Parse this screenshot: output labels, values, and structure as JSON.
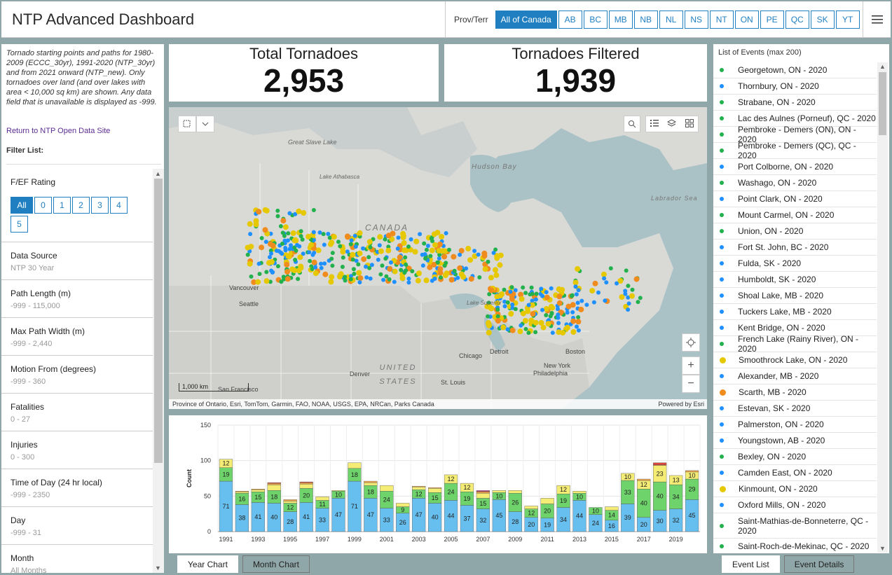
{
  "app_title": "NTP Advanced Dashboard",
  "prov_terr": {
    "label": "Prov/Terr",
    "buttons": [
      "All of Canada",
      "AB",
      "BC",
      "MB",
      "NB",
      "NL",
      "NS",
      "NT",
      "ON",
      "PE",
      "QC",
      "SK",
      "YT"
    ],
    "active": "All of Canada"
  },
  "menu_icon": "hamburger-menu-icon",
  "left_panel": {
    "description": "Tornado starting points and paths for 1980-2009 (ECCC_30yr), 1991-2020 (NTP_30yr) and from 2021 onward (NTP_new).  Only tornadoes over land (and over lakes with area < 10,000 sq km) are shown. Any data field that is unavailable is displayed as -999.",
    "link": "Return to NTP Open Data Site",
    "filter_list_label": "Filter List:",
    "rating": {
      "title": "F/EF Rating",
      "buttons": [
        "All",
        "0",
        "1",
        "2",
        "3",
        "4",
        "5"
      ],
      "active": "All"
    },
    "filters": [
      {
        "title": "Data Source",
        "value": "NTP 30 Year"
      },
      {
        "title": "Path Length (m)",
        "value": "-999 - 115,000"
      },
      {
        "title": "Max Path Width (m)",
        "value": "-999 - 2,440"
      },
      {
        "title": "Motion From (degrees)",
        "value": "-999 - 360"
      },
      {
        "title": "Fatalities",
        "value": "0 - 27"
      },
      {
        "title": "Injuries",
        "value": "0 - 300"
      },
      {
        "title": "Time of Day (24 hr local)",
        "value": "-999 - 2350"
      },
      {
        "title": "Day",
        "value": "-999 - 31"
      },
      {
        "title": "Month",
        "value": "All Months"
      }
    ]
  },
  "kpis": {
    "total_label": "Total Tornadoes",
    "total_value": "2,953",
    "filtered_label": "Tornadoes Filtered",
    "filtered_value": "1,939"
  },
  "map": {
    "labels": [
      "Great Slave Lake",
      "Lake Athabasca",
      "Hudson Bay",
      "Labrador Sea",
      "CANADA",
      "Vancouver",
      "Seattle",
      "Lake Superior",
      "Detroit",
      "Chicago",
      "Boston",
      "New York",
      "Philadelphia",
      "Denver",
      "St. Louis",
      "UNITED STATES",
      "San Francisco"
    ],
    "scale": "1,000 km",
    "attribution": "Province of Ontario, Esri, TomTom, Garmin, FAO, NOAA, USGS, EPA, NRCan, Parks Canada",
    "powered_by": "Powered by Esri",
    "tools": {
      "select": "select-rectangle-icon",
      "dropdown": "chevron-down-icon",
      "search": "search-icon",
      "legend": "legend-list-icon",
      "layers": "layers-icon",
      "basemap": "basemap-gallery-icon",
      "locate": "locate-icon",
      "zoom_in": "+",
      "zoom_out": "−"
    }
  },
  "chart_data": {
    "type": "bar",
    "stacked": true,
    "ylabel": "Count",
    "ylim": [
      0,
      150
    ],
    "yticks": [
      0,
      50,
      100,
      150
    ],
    "categories": [
      "1991",
      "1992",
      "1993",
      "1994",
      "1995",
      "1996",
      "1997",
      "1998",
      "1999",
      "2000",
      "2001",
      "2002",
      "2003",
      "2004",
      "2005",
      "2006",
      "2007",
      "2008",
      "2009",
      "2010",
      "2011",
      "2012",
      "2013",
      "2014",
      "2015",
      "2016",
      "2017",
      "2018",
      "2019",
      "2020"
    ],
    "xtick_labels": [
      "1991",
      "1993",
      "1995",
      "1997",
      "1999",
      "2001",
      "2003",
      "2005",
      "2007",
      "2009",
      "2011",
      "2013",
      "2015",
      "2017",
      "2019"
    ],
    "series": [
      {
        "color": "#66bfef",
        "values": [
          71,
          38,
          41,
          40,
          28,
          41,
          33,
          47,
          71,
          47,
          33,
          26,
          47,
          40,
          44,
          37,
          32,
          45,
          28,
          20,
          19,
          34,
          44,
          24,
          16,
          39,
          20,
          30,
          32,
          45
        ]
      },
      {
        "color": "#6ed36a",
        "values": [
          19,
          16,
          15,
          18,
          12,
          20,
          11,
          10,
          18,
          18,
          24,
          9,
          12,
          15,
          24,
          19,
          15,
          10,
          26,
          12,
          20,
          19,
          10,
          10,
          14,
          33,
          40,
          40,
          34,
          29
        ]
      },
      {
        "color": "#f4ec74",
        "values": [
          12,
          2,
          3,
          8,
          3,
          6,
          5,
          1,
          8,
          4,
          8,
          5,
          4,
          6,
          12,
          12,
          7,
          3,
          4,
          4,
          8,
          12,
          3,
          0,
          5,
          10,
          12,
          23,
          13,
          10
        ]
      },
      {
        "color": "#f3a64a",
        "values": [
          0,
          1,
          1,
          2,
          2,
          2,
          0,
          0,
          0,
          2,
          0,
          0,
          1,
          1,
          0,
          0,
          2,
          0,
          0,
          0,
          0,
          0,
          0,
          0,
          0,
          0,
          2,
          1,
          0,
          2
        ]
      },
      {
        "color": "#e0453c",
        "values": [
          0,
          0,
          0,
          1,
          0,
          1,
          0,
          0,
          0,
          0,
          0,
          0,
          0,
          0,
          0,
          0,
          1,
          0,
          0,
          0,
          0,
          0,
          0,
          0,
          0,
          0,
          0,
          3,
          0,
          0
        ]
      },
      {
        "color": "#d85fcb",
        "values": [
          0,
          0,
          0,
          0,
          0,
          0,
          0,
          0,
          0,
          0,
          0,
          0,
          0,
          0,
          0,
          0,
          1,
          0,
          0,
          0,
          0,
          0,
          0,
          0,
          0,
          0,
          0,
          0,
          0,
          0
        ]
      }
    ],
    "data_labels_series": [
      0,
      1,
      2
    ]
  },
  "chart_tabs": [
    "Year Chart",
    "Month Chart"
  ],
  "chart_tab_active": "Year Chart",
  "right_panel": {
    "title": "List of Events (max 200)",
    "events": [
      {
        "name": "Georgetown, ON - 2020",
        "color": "#22b14c"
      },
      {
        "name": "Thornbury, ON - 2020",
        "color": "#1e90ff"
      },
      {
        "name": "Strabane, ON - 2020",
        "color": "#22b14c"
      },
      {
        "name": "Lac des Aulnes (Porneuf), QC - 2020",
        "color": "#22b14c"
      },
      {
        "name": "Pembroke - Demers (ON), ON - 2020",
        "color": "#22b14c"
      },
      {
        "name": "Pembroke - Demers (QC), QC - 2020",
        "color": "#22b14c"
      },
      {
        "name": "Port Colborne, ON - 2020",
        "color": "#1e90ff"
      },
      {
        "name": "Washago, ON - 2020",
        "color": "#22b14c"
      },
      {
        "name": "Point Clark, ON - 2020",
        "color": "#1e90ff"
      },
      {
        "name": "Mount Carmel, ON - 2020",
        "color": "#22b14c"
      },
      {
        "name": "Union, ON - 2020",
        "color": "#22b14c"
      },
      {
        "name": "Fort St. John, BC - 2020",
        "color": "#1e90ff"
      },
      {
        "name": "Fulda, SK - 2020",
        "color": "#1e90ff"
      },
      {
        "name": "Humboldt, SK - 2020",
        "color": "#1e90ff"
      },
      {
        "name": "Shoal Lake, MB - 2020",
        "color": "#1e90ff"
      },
      {
        "name": "Tuckers Lake, MB - 2020",
        "color": "#1e90ff"
      },
      {
        "name": "Kent Bridge, ON - 2020",
        "color": "#1e90ff"
      },
      {
        "name": "French Lake (Rainy River), ON - 2020",
        "color": "#22b14c"
      },
      {
        "name": "Smoothrock Lake, ON - 2020",
        "color": "#e6c800",
        "big": true
      },
      {
        "name": "Alexander, MB - 2020",
        "color": "#1e90ff"
      },
      {
        "name": "Scarth, MB - 2020",
        "color": "#f08c1e",
        "big": true
      },
      {
        "name": "Estevan, SK - 2020",
        "color": "#1e90ff"
      },
      {
        "name": "Palmerston, ON - 2020",
        "color": "#1e90ff"
      },
      {
        "name": "Youngstown, AB - 2020",
        "color": "#1e90ff"
      },
      {
        "name": "Bexley, ON - 2020",
        "color": "#22b14c"
      },
      {
        "name": "Camden East, ON - 2020",
        "color": "#1e90ff"
      },
      {
        "name": "Kinmount, ON - 2020",
        "color": "#e6c800",
        "big": true
      },
      {
        "name": "Oxford Mills, ON - 2020",
        "color": "#1e90ff"
      },
      {
        "name": "Saint-Mathias-de-Bonneterre, QC - 2020",
        "color": "#22b14c",
        "tall": true
      },
      {
        "name": "Saint-Roch-de-Mekinac, QC - 2020",
        "color": "#22b14c"
      }
    ]
  },
  "right_tabs": [
    "Event List",
    "Event Details"
  ],
  "right_tab_active": "Event List"
}
